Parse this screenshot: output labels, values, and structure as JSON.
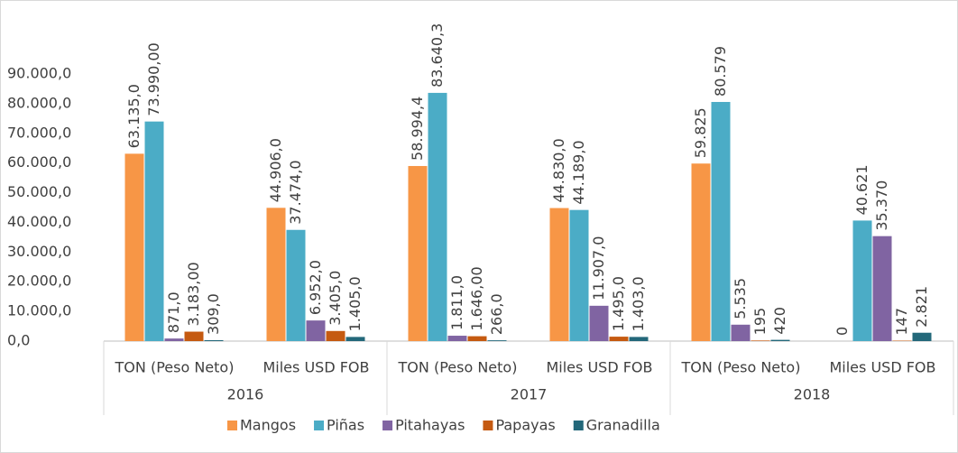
{
  "chart_data": {
    "type": "bar",
    "categories": [
      "TON (Peso Neto)",
      "Miles USD FOB",
      "TON (Peso Neto)",
      "Miles USD FOB",
      "TON (Peso Neto)",
      "Miles USD FOB"
    ],
    "groups": [
      "2016",
      "2017",
      "2018"
    ],
    "series": [
      {
        "name": "Mangos",
        "color": "#F79646",
        "values": [
          63135,
          44906,
          58994.4,
          44830,
          59825,
          0
        ],
        "value_labels": [
          "63.135,0",
          "44.906,0",
          "58.994,4",
          "44.830,0",
          "59.825",
          "0"
        ]
      },
      {
        "name": "Piñas",
        "color": "#4BACC6",
        "values": [
          73990,
          37474,
          83640.3,
          44189,
          80579,
          40621
        ],
        "value_labels": [
          "73.990,00",
          "37.474,0",
          "83.640,3",
          "44.189,0",
          "80.579",
          "40.621"
        ]
      },
      {
        "name": "Pitahayas",
        "color": "#8064A2",
        "values": [
          871,
          6952,
          1811,
          11907,
          5535,
          35370
        ],
        "value_labels": [
          "871,0",
          "6.952,0",
          "1.811,0",
          "11.907,0",
          "5.535",
          "35.370"
        ]
      },
      {
        "name": "Papayas",
        "color": "#C55A11",
        "values": [
          3183,
          3405,
          1646,
          1495,
          195,
          147
        ],
        "value_labels": [
          "3.183,00",
          "3.405,0",
          "1.646,00",
          "1.495,0",
          "195",
          "147"
        ]
      },
      {
        "name": "Granadilla",
        "color": "#23687A",
        "values": [
          309,
          1405,
          266,
          1403,
          420,
          2821
        ],
        "value_labels": [
          "309,0",
          "1.405,0",
          "266,0",
          "1.403,0",
          "420",
          "2.821"
        ]
      }
    ],
    "ylim": [
      0,
      90000
    ],
    "yticks": [
      {
        "value": 0,
        "label": "0,0"
      },
      {
        "value": 10000,
        "label": "10.000,0"
      },
      {
        "value": 20000,
        "label": "20.000,0"
      },
      {
        "value": 30000,
        "label": "30.000,0"
      },
      {
        "value": 40000,
        "label": "40.000,0"
      },
      {
        "value": 50000,
        "label": "50.000,0"
      },
      {
        "value": 60000,
        "label": "60.000,0"
      },
      {
        "value": 70000,
        "label": "70.000,0"
      },
      {
        "value": 80000,
        "label": "80.000,0"
      },
      {
        "value": 90000,
        "label": "90.000,0"
      }
    ],
    "grid": false,
    "legend": "bottom"
  }
}
